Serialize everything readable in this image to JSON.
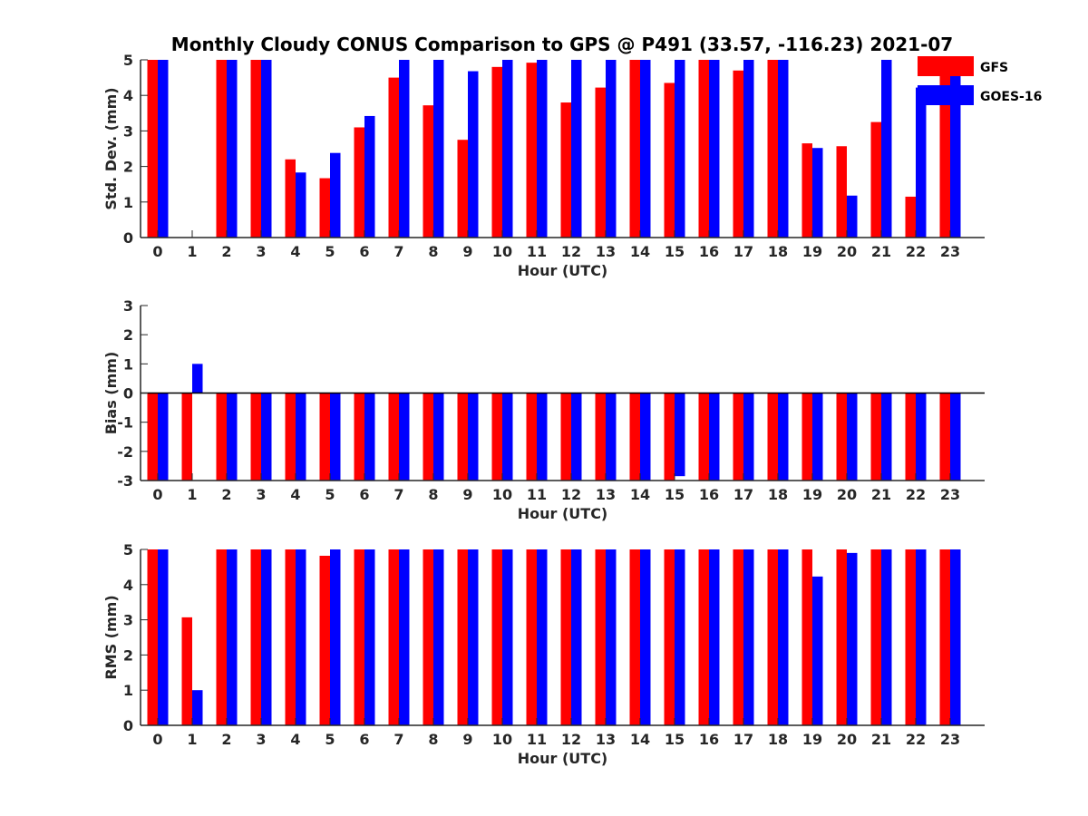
{
  "figure": {
    "title": "Monthly Cloudy CONUS Comparison to GPS @ P491 (33.57, -116.23) 2021-07"
  },
  "colors": {
    "GFS": "#ff0000",
    "GOES-16": "#0000ff",
    "axis": "#262626"
  },
  "legend": {
    "position": "top-right",
    "entries": [
      "GFS",
      "GOES-16"
    ]
  },
  "chart_data": [
    {
      "type": "bar",
      "title": "Monthly Cloudy CONUS Comparison to GPS @ P491 (33.57, -116.23) 2021-07",
      "xlabel": "Hour (UTC)",
      "ylabel": "Std. Dev. (mm)",
      "categories": [
        "0",
        "1",
        "2",
        "3",
        "4",
        "5",
        "6",
        "7",
        "8",
        "9",
        "10",
        "11",
        "12",
        "13",
        "14",
        "15",
        "16",
        "17",
        "18",
        "19",
        "20",
        "21",
        "22",
        "23"
      ],
      "ylim": [
        0,
        5
      ],
      "yticks": [
        0,
        1,
        2,
        3,
        4,
        5
      ],
      "grid": false,
      "legend": "top-right",
      "series": [
        {
          "name": "GFS",
          "values": [
            5,
            null,
            5,
            5,
            2.2,
            1.67,
            3.1,
            4.5,
            3.72,
            2.75,
            4.8,
            4.92,
            3.8,
            4.22,
            5,
            4.35,
            5,
            4.7,
            5,
            2.65,
            2.57,
            3.25,
            1.15,
            4.7
          ]
        },
        {
          "name": "GOES-16",
          "values": [
            5,
            null,
            5,
            5,
            1.83,
            2.38,
            3.42,
            5,
            5,
            4.68,
            5,
            5,
            5,
            5,
            5,
            5,
            5,
            5,
            5,
            2.52,
            1.18,
            5,
            4.22,
            5
          ]
        }
      ]
    },
    {
      "type": "bar",
      "xlabel": "Hour (UTC)",
      "ylabel": "Bias (mm)",
      "categories": [
        "0",
        "1",
        "2",
        "3",
        "4",
        "5",
        "6",
        "7",
        "8",
        "9",
        "10",
        "11",
        "12",
        "13",
        "14",
        "15",
        "16",
        "17",
        "18",
        "19",
        "20",
        "21",
        "22",
        "23"
      ],
      "ylim": [
        -3,
        3
      ],
      "yticks": [
        -3,
        -2,
        -1,
        0,
        1,
        2,
        3
      ],
      "grid": false,
      "series": [
        {
          "name": "GFS",
          "values": [
            -3,
            -3,
            -3,
            -3,
            -3,
            -3,
            -3,
            -3,
            -3,
            -3,
            -3,
            -3,
            -3,
            -3,
            -3,
            -3,
            -3,
            -3,
            -3,
            -3,
            -3,
            -3,
            -3,
            -3
          ]
        },
        {
          "name": "GOES-16",
          "values": [
            -3,
            1.0,
            -3,
            -3,
            -3,
            -3,
            -3,
            -3,
            -3,
            -3,
            -3,
            -3,
            -3,
            -3,
            -3,
            -2.85,
            -3,
            -3,
            -3,
            -3,
            -3,
            -3,
            -3,
            -3
          ]
        }
      ]
    },
    {
      "type": "bar",
      "xlabel": "Hour (UTC)",
      "ylabel": "RMS (mm)",
      "categories": [
        "0",
        "1",
        "2",
        "3",
        "4",
        "5",
        "6",
        "7",
        "8",
        "9",
        "10",
        "11",
        "12",
        "13",
        "14",
        "15",
        "16",
        "17",
        "18",
        "19",
        "20",
        "21",
        "22",
        "23"
      ],
      "ylim": [
        0,
        5
      ],
      "yticks": [
        0,
        1,
        2,
        3,
        4,
        5
      ],
      "grid": false,
      "series": [
        {
          "name": "GFS",
          "values": [
            5,
            3.07,
            5,
            5,
            5,
            4.82,
            5,
            5,
            5,
            5,
            5,
            5,
            5,
            5,
            5,
            5,
            5,
            5,
            5,
            5,
            5,
            5,
            5,
            5
          ]
        },
        {
          "name": "GOES-16",
          "values": [
            5,
            1.0,
            5,
            5,
            5,
            5,
            5,
            5,
            5,
            5,
            5,
            5,
            5,
            5,
            5,
            5,
            5,
            5,
            5,
            4.23,
            4.9,
            5,
            5,
            5
          ]
        }
      ]
    }
  ]
}
